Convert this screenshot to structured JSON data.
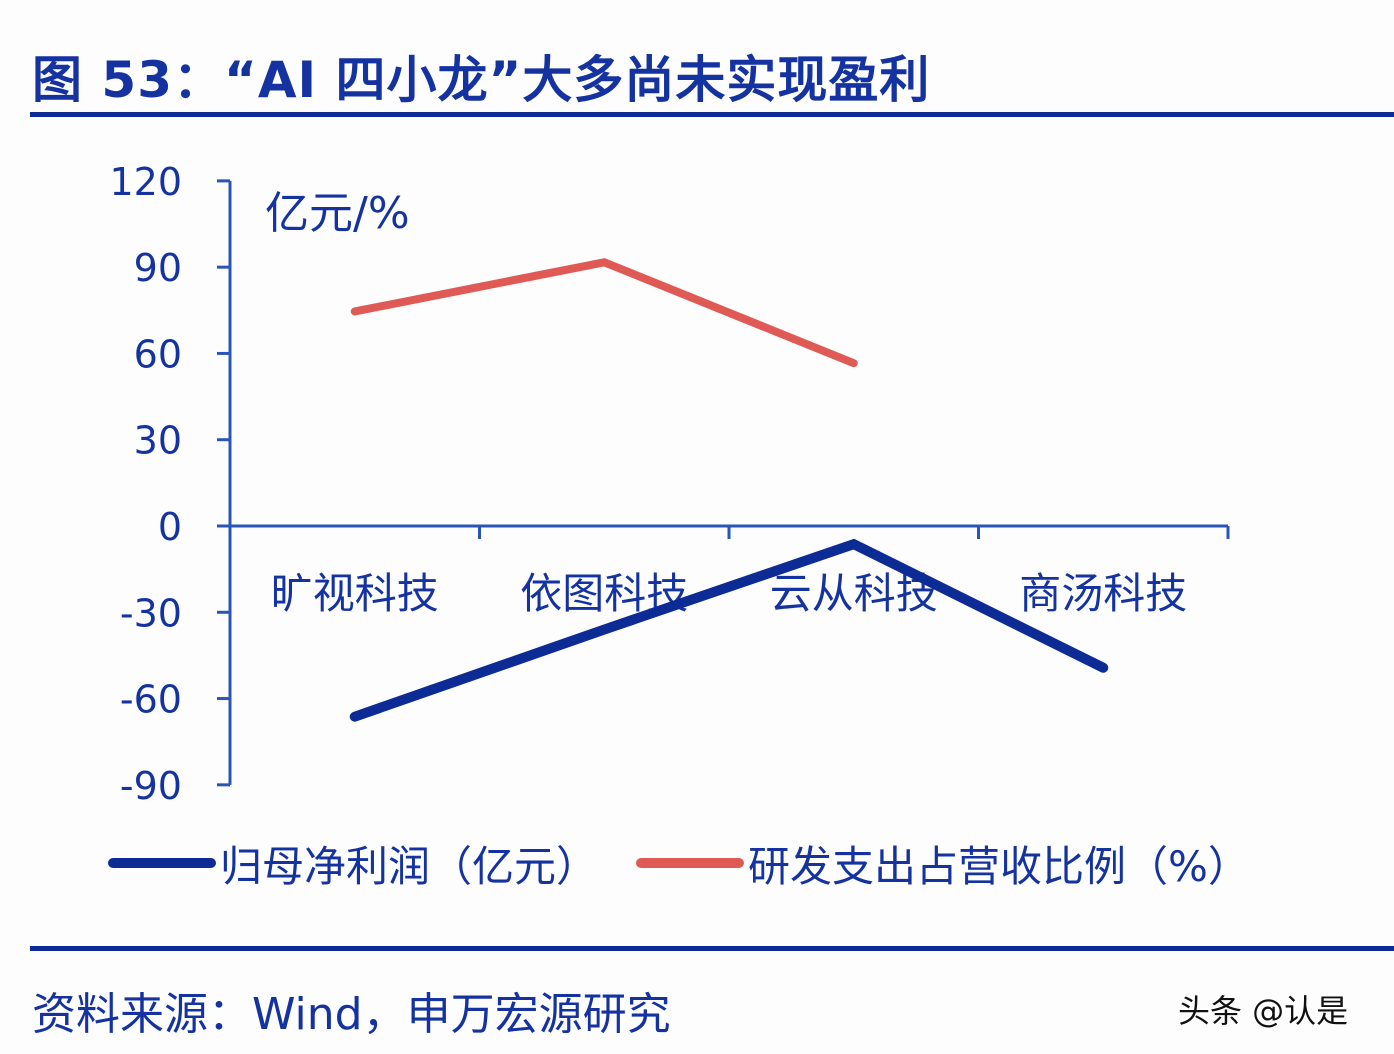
{
  "title": "图 53：“AI 四小龙”大多尚未实现盈利",
  "unit_label": "亿元/%",
  "source": "资料来源：Wind，申万宏源研究",
  "watermark": "头条 @认是",
  "legend": [
    {
      "label": "归母净利润（亿元）",
      "color": "#0d2b94"
    },
    {
      "label": "研发支出占营收比例（%）",
      "color": "#e05a55"
    }
  ],
  "colors": {
    "axis": "#2a55b8",
    "text": "#1433a0",
    "rule": "#0d2b94"
  },
  "chart_data": {
    "type": "line",
    "title": "“AI 四小龙”大多尚未实现盈利",
    "xlabel": "",
    "ylabel": "亿元/%",
    "categories": [
      "旷视科技",
      "依图科技",
      "云从科技",
      "商汤科技"
    ],
    "yticks": [
      120,
      90,
      60,
      30,
      0,
      -30,
      -60,
      -90
    ],
    "ylim": [
      -90,
      120
    ],
    "grid": false,
    "legend_position": "bottom",
    "series": [
      {
        "name": "归母净利润（亿元）",
        "color": "#0d2b94",
        "values": [
          -66.3,
          -36.0,
          -6.3,
          -49.3
        ]
      },
      {
        "name": "研发支出占营收比例（%）",
        "color": "#e05a55",
        "values": [
          74.6,
          91.7,
          56.6,
          null
        ]
      }
    ]
  }
}
